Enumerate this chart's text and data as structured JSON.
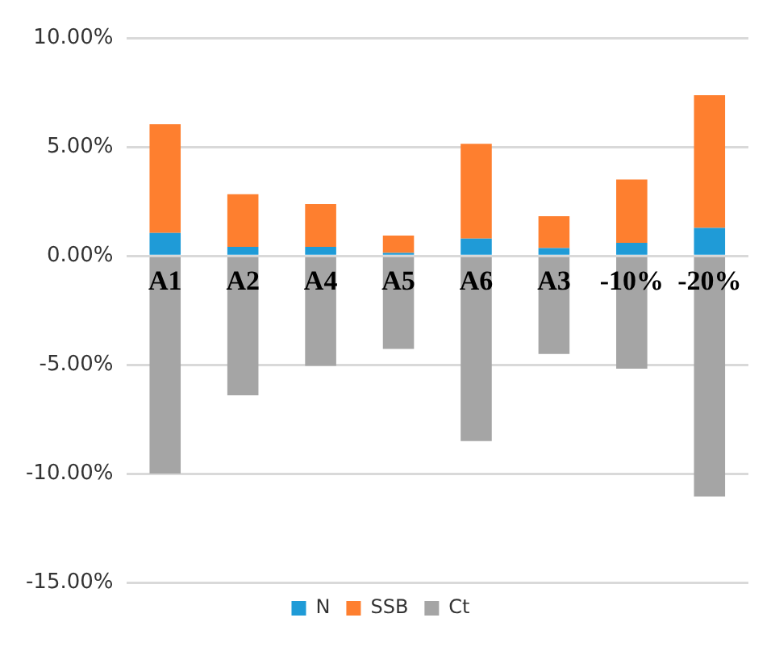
{
  "chart_data": {
    "type": "bar",
    "stacked": true,
    "categories": [
      "A1",
      "A2",
      "A4",
      "A5",
      "A6",
      "A3",
      "-10%",
      "-20%"
    ],
    "series": [
      {
        "name": "N",
        "color": "#1f9bd7",
        "values": [
          1.06,
          0.42,
          0.42,
          0.14,
          0.8,
          0.37,
          0.61,
          1.29
        ]
      },
      {
        "name": "SSB",
        "color": "#fe7f2f",
        "values": [
          5.0,
          2.42,
          1.97,
          0.8,
          4.36,
          1.46,
          2.91,
          6.1
        ]
      },
      {
        "name": "Ct",
        "color": "#a5a5a5",
        "values": [
          -10.0,
          -6.4,
          -5.05,
          -4.27,
          -8.5,
          -4.5,
          -5.18,
          -11.05
        ]
      }
    ],
    "ylim": [
      -15,
      10
    ],
    "yticks": [
      {
        "value": -15,
        "label": "-15.00%"
      },
      {
        "value": -10,
        "label": "-10.00%"
      },
      {
        "value": -5,
        "label": "-5.00%"
      },
      {
        "value": 0,
        "label": "0.00%"
      },
      {
        "value": 5,
        "label": "5.00%"
      },
      {
        "value": 10,
        "label": "10.00%"
      }
    ],
    "grid": "y",
    "legend": "bottom"
  }
}
